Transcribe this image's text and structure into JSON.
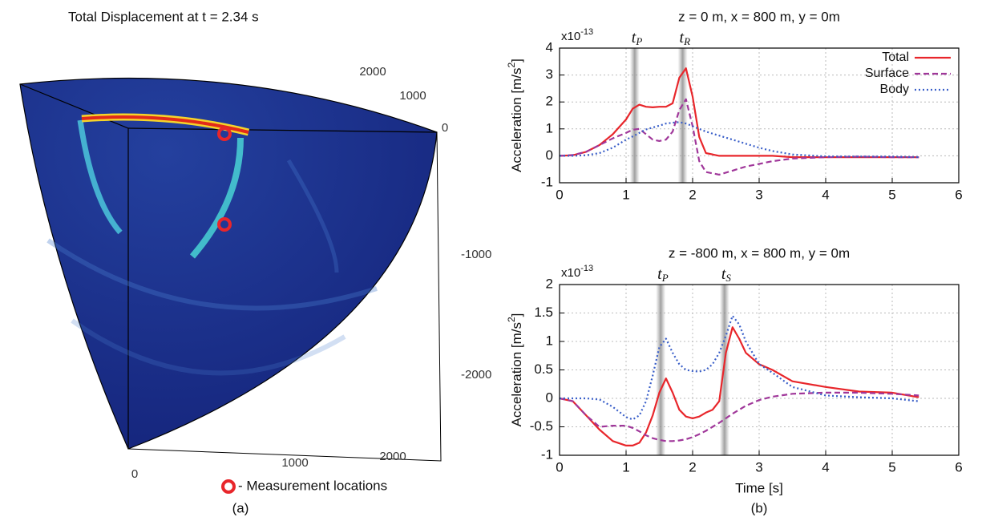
{
  "chart_data": [
    {
      "type": "volume",
      "title": "Total Displacement at t = 2.34 s",
      "axis_ticks": {
        "back": [
          2000,
          1000,
          0
        ],
        "vertical": [
          -1000,
          -2000
        ],
        "front": [
          0,
          1000,
          2000
        ]
      },
      "legend": "- Measurement locations",
      "caption": "(a)"
    },
    {
      "type": "line",
      "title": "z = 0 m, x = 800 m, y = 0m",
      "y_multiplier": {
        "base": "x10",
        "exponent": "-13"
      },
      "ylabel": [
        "Acceleration [m/s",
        "2",
        "]"
      ],
      "xlim": [
        0,
        6
      ],
      "xticks": [
        0,
        1,
        2,
        3,
        4,
        5,
        6
      ],
      "ylim": [
        -1,
        4
      ],
      "yticks": [
        -1,
        0,
        1,
        2,
        3,
        4
      ],
      "grid": true,
      "legend": "upper right",
      "markers": [
        {
          "label": "t",
          "sub": "P",
          "x": 1.13
        },
        {
          "label": "t",
          "sub": "R",
          "x": 1.85
        }
      ],
      "x": [
        0,
        0.2,
        0.4,
        0.6,
        0.8,
        1.0,
        1.1,
        1.2,
        1.3,
        1.4,
        1.5,
        1.6,
        1.7,
        1.8,
        1.9,
        2.0,
        2.1,
        2.2,
        2.4,
        2.6,
        2.8,
        3.0,
        3.2,
        3.5,
        4.0,
        4.5,
        5.0,
        5.4
      ],
      "series": [
        {
          "name": "Total",
          "color": "#e8262b",
          "style": "solid",
          "values": [
            0,
            0.02,
            0.15,
            0.4,
            0.8,
            1.35,
            1.75,
            1.9,
            1.82,
            1.8,
            1.82,
            1.82,
            1.95,
            2.9,
            3.25,
            2.2,
            0.7,
            0.1,
            0,
            0,
            0,
            0,
            0,
            -0.05,
            -0.05,
            -0.05,
            -0.05,
            -0.05
          ]
        },
        {
          "name": "Surface",
          "color": "#a0379a",
          "style": "dashed",
          "values": [
            0,
            0.03,
            0.15,
            0.4,
            0.65,
            0.85,
            0.97,
            1.0,
            0.8,
            0.6,
            0.55,
            0.6,
            0.9,
            1.7,
            2.1,
            1.1,
            -0.2,
            -0.6,
            -0.7,
            -0.55,
            -0.4,
            -0.3,
            -0.2,
            -0.1,
            -0.05,
            -0.03,
            -0.05,
            -0.05
          ]
        },
        {
          "name": "Body",
          "color": "#3a5fc9",
          "style": "dotted",
          "values": [
            0,
            0,
            0.02,
            0.1,
            0.3,
            0.6,
            0.72,
            0.85,
            0.98,
            1.05,
            1.12,
            1.2,
            1.23,
            1.25,
            1.2,
            1.1,
            1.0,
            0.9,
            0.75,
            0.6,
            0.45,
            0.3,
            0.18,
            0.05,
            -0.02,
            -0.03,
            -0.03,
            -0.05
          ]
        }
      ]
    },
    {
      "type": "line",
      "title": "z = -800 m, x = 800 m, y = 0m",
      "y_multiplier": {
        "base": "x10",
        "exponent": "-13"
      },
      "ylabel": [
        "Acceleration [m/s",
        "2",
        "]"
      ],
      "xlabel": "Time [s]",
      "caption": "(b)",
      "xlim": [
        0,
        6
      ],
      "xticks": [
        0,
        1,
        2,
        3,
        4,
        5,
        6
      ],
      "ylim": [
        -1,
        2
      ],
      "yticks": [
        -1,
        -0.5,
        0,
        0.5,
        1,
        1.5,
        2
      ],
      "grid": true,
      "markers": [
        {
          "label": "t",
          "sub": "P",
          "x": 1.52
        },
        {
          "label": "t",
          "sub": "S",
          "x": 2.48
        }
      ],
      "x": [
        0,
        0.2,
        0.4,
        0.6,
        0.8,
        1.0,
        1.1,
        1.2,
        1.3,
        1.4,
        1.5,
        1.6,
        1.7,
        1.8,
        1.9,
        2.0,
        2.1,
        2.2,
        2.3,
        2.4,
        2.5,
        2.6,
        2.7,
        2.8,
        3.0,
        3.2,
        3.5,
        4.0,
        4.5,
        5.0,
        5.4
      ],
      "series": [
        {
          "color": "#e8262b",
          "style": "solid",
          "values": [
            0,
            -0.05,
            -0.3,
            -0.55,
            -0.75,
            -0.83,
            -0.83,
            -0.78,
            -0.6,
            -0.3,
            0.1,
            0.35,
            0.1,
            -0.2,
            -0.32,
            -0.35,
            -0.32,
            -0.25,
            -0.2,
            -0.05,
            0.8,
            1.25,
            1.05,
            0.8,
            0.6,
            0.5,
            0.3,
            0.2,
            0.12,
            0.1,
            0.02
          ]
        },
        {
          "color": "#a0379a",
          "style": "dashed",
          "values": [
            0,
            -0.05,
            -0.3,
            -0.5,
            -0.48,
            -0.48,
            -0.52,
            -0.58,
            -0.65,
            -0.7,
            -0.73,
            -0.75,
            -0.75,
            -0.74,
            -0.72,
            -0.68,
            -0.63,
            -0.57,
            -0.5,
            -0.43,
            -0.35,
            -0.27,
            -0.2,
            -0.13,
            -0.03,
            0.03,
            0.08,
            0.1,
            0.1,
            0.08,
            0.05
          ]
        },
        {
          "color": "#3a5fc9",
          "style": "dotted",
          "values": [
            0,
            0,
            0,
            -0.02,
            -0.15,
            -0.33,
            -0.37,
            -0.3,
            -0.05,
            0.4,
            0.9,
            1.05,
            0.8,
            0.6,
            0.5,
            0.48,
            0.47,
            0.5,
            0.6,
            0.8,
            1.1,
            1.45,
            1.3,
            1.0,
            0.6,
            0.45,
            0.2,
            0.05,
            0.02,
            0.0,
            -0.05
          ]
        }
      ]
    }
  ]
}
